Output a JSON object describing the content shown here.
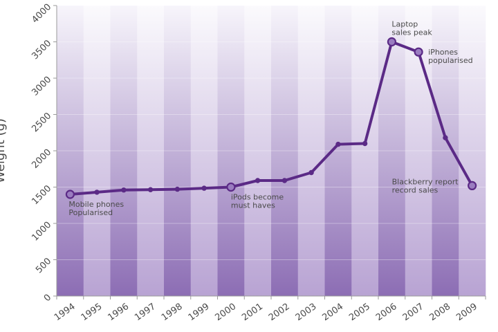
{
  "chart_data": {
    "type": "line",
    "title": "",
    "xlabel": "",
    "ylabel": "Weight (g)",
    "ylim": [
      0,
      4000
    ],
    "yticks": [
      0,
      500,
      1000,
      1500,
      2000,
      2500,
      3000,
      3500,
      4000
    ],
    "grid": false,
    "categories": [
      "1994",
      "1995",
      "1996",
      "1997",
      "1998",
      "1999",
      "2000",
      "2001",
      "2002",
      "2003",
      "2004",
      "2005",
      "2006",
      "2007",
      "2008",
      "2009"
    ],
    "series": [
      {
        "values": [
          1400,
          1430,
          1460,
          1465,
          1470,
          1485,
          1500,
          1590,
          1590,
          1700,
          2090,
          2100,
          3500,
          3360,
          2180,
          1520
        ],
        "highlighted_years": [
          "1994",
          "2000",
          "2006",
          "2007",
          "2009"
        ]
      }
    ],
    "annotations": [
      {
        "category": "1994",
        "lines": [
          "Mobile phones",
          "Popularised"
        ]
      },
      {
        "category": "2000",
        "lines": [
          "iPods become",
          "must haves"
        ]
      },
      {
        "category": "2006",
        "lines": [
          "Laptop",
          "sales peak"
        ]
      },
      {
        "category": "2007",
        "lines": [
          "iPhones",
          "popularised"
        ]
      },
      {
        "category": "2009",
        "lines": [
          "Blackberry report",
          "record sales"
        ]
      }
    ],
    "colors": {
      "line": "#5b2a86",
      "marker_large": "#9a7cc0",
      "stripe_dark_bottom": "#8c6db4",
      "stripe_light_bottom": "#b8a3d3",
      "background_top": "#f6f4fa"
    }
  }
}
